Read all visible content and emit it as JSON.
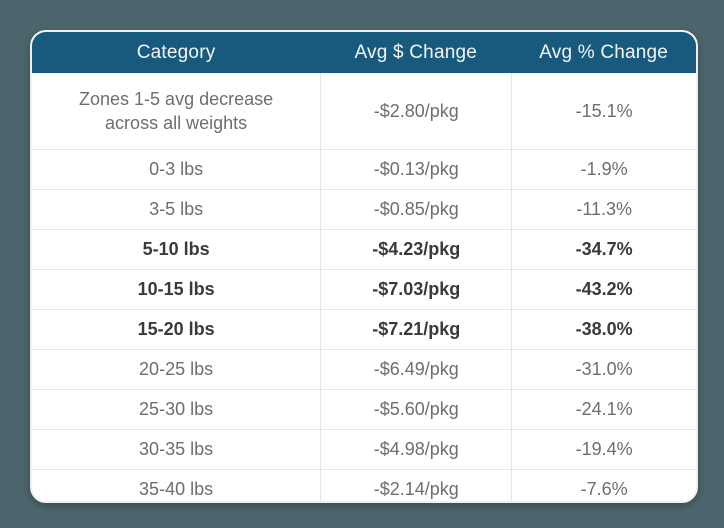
{
  "page": {
    "background_color": "#4d666e",
    "card_background": "#ffffff",
    "header_background": "#175a7e",
    "header_text_color": "#f2f6f8",
    "body_text_color": "#6d6e71",
    "emphasized_text_color": "#3a3a3c",
    "divider_color": "#e4e5e6"
  },
  "chart_data": {
    "type": "table",
    "title": "",
    "columns": [
      "Category",
      "Avg $ Change",
      "Avg % Change"
    ],
    "rows": [
      {
        "category": "Zones 1-5 avg decrease across all weights",
        "avg_dollar_change": "-$2.80/pkg",
        "avg_percent_change": "-15.1%",
        "emphasized": false,
        "tall": true
      },
      {
        "category": "0-3 lbs",
        "avg_dollar_change": "-$0.13/pkg",
        "avg_percent_change": "-1.9%",
        "emphasized": false,
        "tall": false
      },
      {
        "category": "3-5 lbs",
        "avg_dollar_change": "-$0.85/pkg",
        "avg_percent_change": "-11.3%",
        "emphasized": false,
        "tall": false
      },
      {
        "category": "5-10 lbs",
        "avg_dollar_change": "-$4.23/pkg",
        "avg_percent_change": "-34.7%",
        "emphasized": true,
        "tall": false
      },
      {
        "category": "10-15 lbs",
        "avg_dollar_change": "-$7.03/pkg",
        "avg_percent_change": "-43.2%",
        "emphasized": true,
        "tall": false
      },
      {
        "category": "15-20 lbs",
        "avg_dollar_change": "-$7.21/pkg",
        "avg_percent_change": "-38.0%",
        "emphasized": true,
        "tall": false
      },
      {
        "category": "20-25 lbs",
        "avg_dollar_change": "-$6.49/pkg",
        "avg_percent_change": "-31.0%",
        "emphasized": false,
        "tall": false
      },
      {
        "category": "25-30 lbs",
        "avg_dollar_change": "-$5.60/pkg",
        "avg_percent_change": "-24.1%",
        "emphasized": false,
        "tall": false
      },
      {
        "category": "30-35 lbs",
        "avg_dollar_change": "-$4.98/pkg",
        "avg_percent_change": "-19.4%",
        "emphasized": false,
        "tall": false
      },
      {
        "category": "35-40 lbs",
        "avg_dollar_change": "-$2.14/pkg",
        "avg_percent_change": "-7.6%",
        "emphasized": false,
        "tall": false
      }
    ]
  }
}
